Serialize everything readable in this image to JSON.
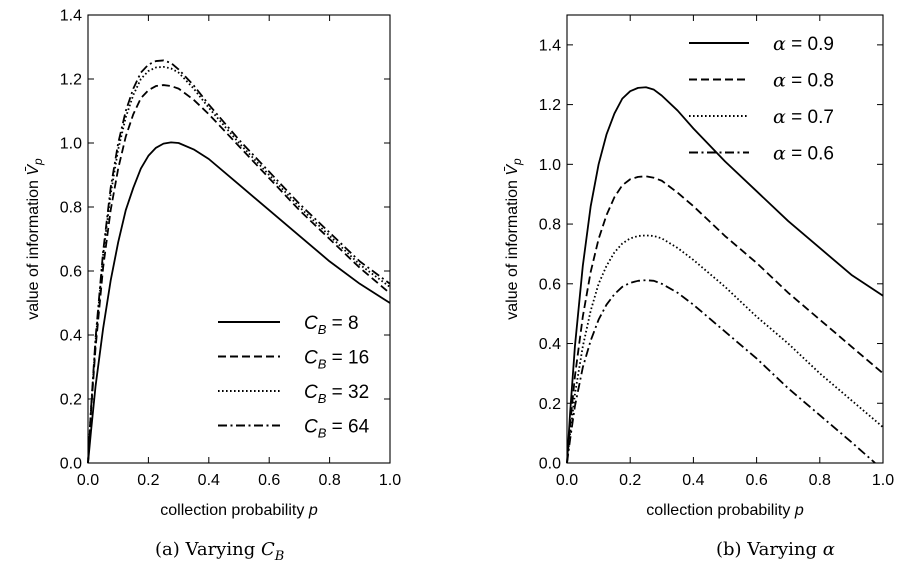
{
  "chart_data": [
    {
      "type": "line",
      "caption": "(a) Varying C_B",
      "caption_prefix": "(a) Varying ",
      "caption_symbol": "C",
      "caption_sub": "B",
      "xlabel": "collection probability p",
      "xlabel_text": "collection probability ",
      "xlabel_var": "p",
      "ylabel": "value of information V̄_p",
      "ylabel_text": "value of information ",
      "ylabel_var": "V̄",
      "ylabel_sub": "p",
      "xlim": [
        0,
        1
      ],
      "ylim": [
        0,
        1.4
      ],
      "xticks": [
        "0.0",
        "0.2",
        "0.4",
        "0.6",
        "0.8",
        "1.0"
      ],
      "yticks": [
        "0.0",
        "0.2",
        "0.4",
        "0.6",
        "0.8",
        "1.0",
        "1.2",
        "1.4"
      ],
      "legend_position": "bottom-right",
      "series": [
        {
          "name": "C_B = 8",
          "label_var": "C",
          "label_sub": "B",
          "label_value": " = 8",
          "dash": "solid",
          "x": [
            0,
            0.01,
            0.025,
            0.05,
            0.075,
            0.1,
            0.125,
            0.15,
            0.175,
            0.2,
            0.225,
            0.25,
            0.275,
            0.3,
            0.35,
            0.4,
            0.5,
            0.6,
            0.7,
            0.8,
            0.9,
            1.0
          ],
          "y": [
            0,
            0.1,
            0.24,
            0.42,
            0.57,
            0.69,
            0.79,
            0.86,
            0.92,
            0.96,
            0.985,
            0.998,
            1.002,
            1.0,
            0.98,
            0.95,
            0.87,
            0.79,
            0.71,
            0.63,
            0.56,
            0.5
          ]
        },
        {
          "name": "C_B = 16",
          "label_var": "C",
          "label_sub": "B",
          "label_value": " = 16",
          "dash": "dashed",
          "x": [
            0,
            0.01,
            0.025,
            0.05,
            0.075,
            0.1,
            0.125,
            0.15,
            0.175,
            0.2,
            0.225,
            0.25,
            0.275,
            0.3,
            0.35,
            0.4,
            0.5,
            0.6,
            0.7,
            0.8,
            0.9,
            1.0
          ],
          "y": [
            0,
            0.16,
            0.36,
            0.61,
            0.79,
            0.92,
            1.02,
            1.09,
            1.14,
            1.165,
            1.178,
            1.181,
            1.178,
            1.17,
            1.135,
            1.09,
            0.99,
            0.89,
            0.79,
            0.7,
            0.61,
            0.53
          ]
        },
        {
          "name": "C_B = 32",
          "label_var": "C",
          "label_sub": "B",
          "label_value": " = 32",
          "dash": "dotted",
          "x": [
            0,
            0.01,
            0.025,
            0.05,
            0.075,
            0.1,
            0.125,
            0.15,
            0.175,
            0.2,
            0.225,
            0.25,
            0.275,
            0.3,
            0.35,
            0.4,
            0.5,
            0.6,
            0.7,
            0.8,
            0.9,
            1.0
          ],
          "y": [
            0,
            0.17,
            0.38,
            0.65,
            0.84,
            0.98,
            1.08,
            1.15,
            1.2,
            1.225,
            1.236,
            1.238,
            1.233,
            1.22,
            1.17,
            1.11,
            1.0,
            0.9,
            0.8,
            0.71,
            0.62,
            0.55
          ]
        },
        {
          "name": "C_B = 64",
          "label_var": "C",
          "label_sub": "B",
          "label_value": " = 64",
          "dash": "dashdot",
          "x": [
            0,
            0.01,
            0.025,
            0.05,
            0.075,
            0.1,
            0.125,
            0.15,
            0.175,
            0.2,
            0.225,
            0.25,
            0.275,
            0.3,
            0.35,
            0.4,
            0.5,
            0.6,
            0.7,
            0.8,
            0.9,
            1.0
          ],
          "y": [
            0,
            0.17,
            0.39,
            0.66,
            0.86,
            1.0,
            1.1,
            1.17,
            1.22,
            1.245,
            1.256,
            1.258,
            1.25,
            1.23,
            1.18,
            1.12,
            1.01,
            0.91,
            0.81,
            0.72,
            0.63,
            0.56
          ]
        }
      ]
    },
    {
      "type": "line",
      "caption": "(b) Varying α",
      "caption_prefix": "(b) Varying ",
      "caption_symbol": "α",
      "caption_sub": "",
      "xlabel": "collection probability p",
      "xlabel_text": "collection probability ",
      "xlabel_var": "p",
      "ylabel": "value of information V̄_p",
      "ylabel_text": "value of information ",
      "ylabel_var": "V̄",
      "ylabel_sub": "p",
      "xlim": [
        0,
        1
      ],
      "ylim": [
        0,
        1.5
      ],
      "xticks": [
        "0.0",
        "0.2",
        "0.4",
        "0.6",
        "0.8",
        "1.0"
      ],
      "yticks": [
        "0.0",
        "0.2",
        "0.4",
        "0.6",
        "0.8",
        "1.0",
        "1.2",
        "1.4"
      ],
      "legend_position": "top-right",
      "series": [
        {
          "name": "α = 0.9",
          "label_var": "α",
          "label_sub": "",
          "label_value": " = 0.9",
          "dash": "solid",
          "x": [
            0,
            0.01,
            0.025,
            0.05,
            0.075,
            0.1,
            0.125,
            0.15,
            0.175,
            0.2,
            0.225,
            0.25,
            0.275,
            0.3,
            0.35,
            0.4,
            0.5,
            0.6,
            0.7,
            0.8,
            0.9,
            1.0
          ],
          "y": [
            0,
            0.17,
            0.39,
            0.66,
            0.86,
            1.0,
            1.1,
            1.17,
            1.22,
            1.245,
            1.256,
            1.258,
            1.25,
            1.23,
            1.18,
            1.12,
            1.01,
            0.91,
            0.81,
            0.72,
            0.63,
            0.56
          ]
        },
        {
          "name": "α = 0.8",
          "label_var": "α",
          "label_sub": "",
          "label_value": " = 0.8",
          "dash": "dashed",
          "x": [
            0,
            0.01,
            0.025,
            0.05,
            0.075,
            0.1,
            0.125,
            0.15,
            0.175,
            0.2,
            0.225,
            0.25,
            0.275,
            0.3,
            0.35,
            0.4,
            0.5,
            0.6,
            0.7,
            0.8,
            0.9,
            1.0
          ],
          "y": [
            0,
            0.13,
            0.29,
            0.49,
            0.64,
            0.75,
            0.83,
            0.89,
            0.93,
            0.95,
            0.958,
            0.96,
            0.955,
            0.945,
            0.905,
            0.86,
            0.76,
            0.67,
            0.57,
            0.48,
            0.39,
            0.3
          ]
        },
        {
          "name": "α = 0.7",
          "label_var": "α",
          "label_sub": "",
          "label_value": " = 0.7",
          "dash": "dotted",
          "x": [
            0,
            0.01,
            0.025,
            0.05,
            0.075,
            0.1,
            0.125,
            0.15,
            0.175,
            0.2,
            0.225,
            0.25,
            0.275,
            0.3,
            0.35,
            0.4,
            0.5,
            0.6,
            0.7,
            0.8,
            0.9,
            1.0
          ],
          "y": [
            0,
            0.1,
            0.23,
            0.39,
            0.51,
            0.6,
            0.66,
            0.705,
            0.735,
            0.752,
            0.76,
            0.762,
            0.76,
            0.752,
            0.72,
            0.68,
            0.59,
            0.49,
            0.4,
            0.3,
            0.21,
            0.12
          ]
        },
        {
          "name": "α = 0.6",
          "label_var": "α",
          "label_sub": "",
          "label_value": " = 0.6",
          "dash": "dashdot",
          "x": [
            0,
            0.01,
            0.025,
            0.05,
            0.075,
            0.1,
            0.125,
            0.15,
            0.175,
            0.2,
            0.225,
            0.25,
            0.275,
            0.3,
            0.35,
            0.4,
            0.5,
            0.6,
            0.7,
            0.8,
            0.9,
            0.975
          ],
          "y": [
            0,
            0.08,
            0.19,
            0.32,
            0.41,
            0.48,
            0.53,
            0.565,
            0.59,
            0.603,
            0.61,
            0.612,
            0.61,
            0.6,
            0.57,
            0.53,
            0.44,
            0.35,
            0.25,
            0.16,
            0.07,
            0.0
          ]
        }
      ]
    }
  ]
}
